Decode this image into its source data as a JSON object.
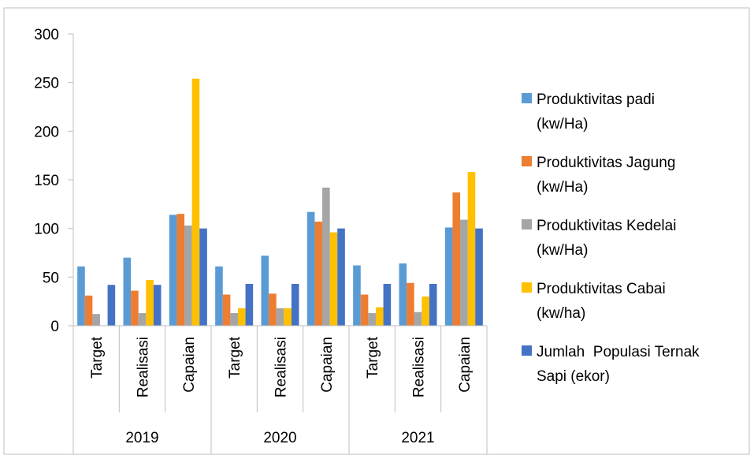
{
  "chart_data": {
    "type": "bar",
    "groups": [
      {
        "label": "2019",
        "categories": [
          "Target",
          "Realisasi",
          "Capaian"
        ]
      },
      {
        "label": "2020",
        "categories": [
          "Target",
          "Realisasi",
          "Capaian"
        ]
      },
      {
        "label": "2021",
        "categories": [
          "Target",
          "Realisasi",
          "Capaian"
        ]
      }
    ],
    "categories": [
      "Target",
      "Realisasi",
      "Capaian",
      "Target",
      "Realisasi",
      "Capaian",
      "Target",
      "Realisasi",
      "Capaian"
    ],
    "series": [
      {
        "name": "Produktivitas padi (kw/Ha)",
        "color": "#5B9BD5",
        "values": [
          61,
          70,
          114,
          61,
          72,
          117,
          62,
          64,
          101
        ]
      },
      {
        "name": "Produktivitas Jagung (kw/Ha)",
        "color": "#ED7D31",
        "values": [
          31,
          36,
          115,
          32,
          33,
          107,
          32,
          44,
          137
        ]
      },
      {
        "name": "Produktivitas Kedelai (kw/Ha)",
        "color": "#A5A5A5",
        "values": [
          12,
          13,
          103,
          13,
          18,
          142,
          13,
          14,
          109
        ]
      },
      {
        "name": "Produktivitas Cabai (kw/ha)",
        "color": "#FFC000",
        "values": [
          0,
          47,
          254,
          18,
          18,
          96,
          19,
          30,
          158
        ]
      },
      {
        "name": "Jumlah  Populasi Ternak Sapi (ekor)",
        "color": "#4472C4",
        "values": [
          42,
          42,
          100,
          43,
          43,
          100,
          43,
          43,
          100
        ]
      }
    ],
    "legend_lines": [
      [
        "Produktivitas padi",
        "(kw/Ha)"
      ],
      [
        "Produktivitas Jagung",
        "(kw/Ha)"
      ],
      [
        "Produktivitas Kedelai",
        "(kw/Ha)"
      ],
      [
        "Produktivitas Cabai",
        "(kw/ha)"
      ],
      [
        "Jumlah  Populasi Ternak",
        "Sapi (ekor)"
      ]
    ],
    "y_ticks": [
      "0",
      "50",
      "100",
      "150",
      "200",
      "250",
      "300"
    ],
    "ylim": [
      0,
      300
    ],
    "grid": false,
    "legend_position": "right",
    "title": "",
    "xlabel": "",
    "ylabel": ""
  }
}
